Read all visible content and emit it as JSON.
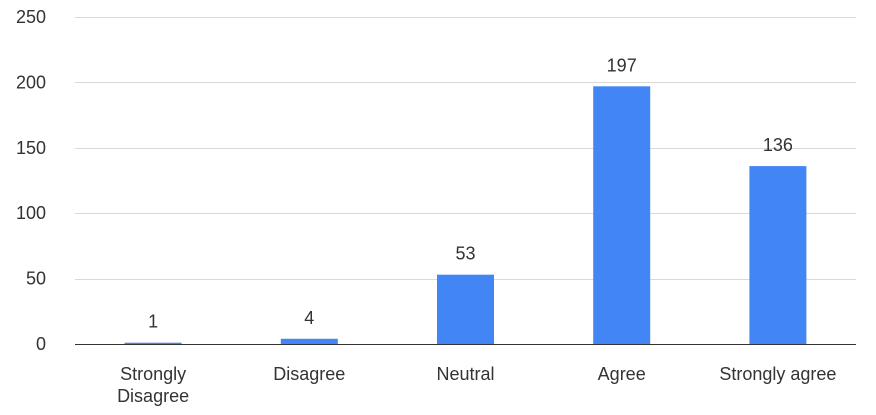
{
  "chart_data": {
    "type": "bar",
    "categories": [
      "Strongly Disagree",
      "Disagree",
      "Neutral",
      "Agree",
      "Strongly agree"
    ],
    "category_lines": [
      [
        "Strongly",
        "Disagree"
      ],
      [
        "Disagree"
      ],
      [
        "Neutral"
      ],
      [
        "Agree"
      ],
      [
        "Strongly agree"
      ]
    ],
    "values": [
      1,
      4,
      53,
      197,
      136
    ],
    "data_labels": [
      "1",
      "4",
      "53",
      "197",
      "136"
    ],
    "yticks": [
      "0",
      "50",
      "100",
      "150",
      "200",
      "250"
    ],
    "ylim": [
      0,
      250
    ],
    "grid": true,
    "legend": "none",
    "bar_color": "#4285f4"
  }
}
